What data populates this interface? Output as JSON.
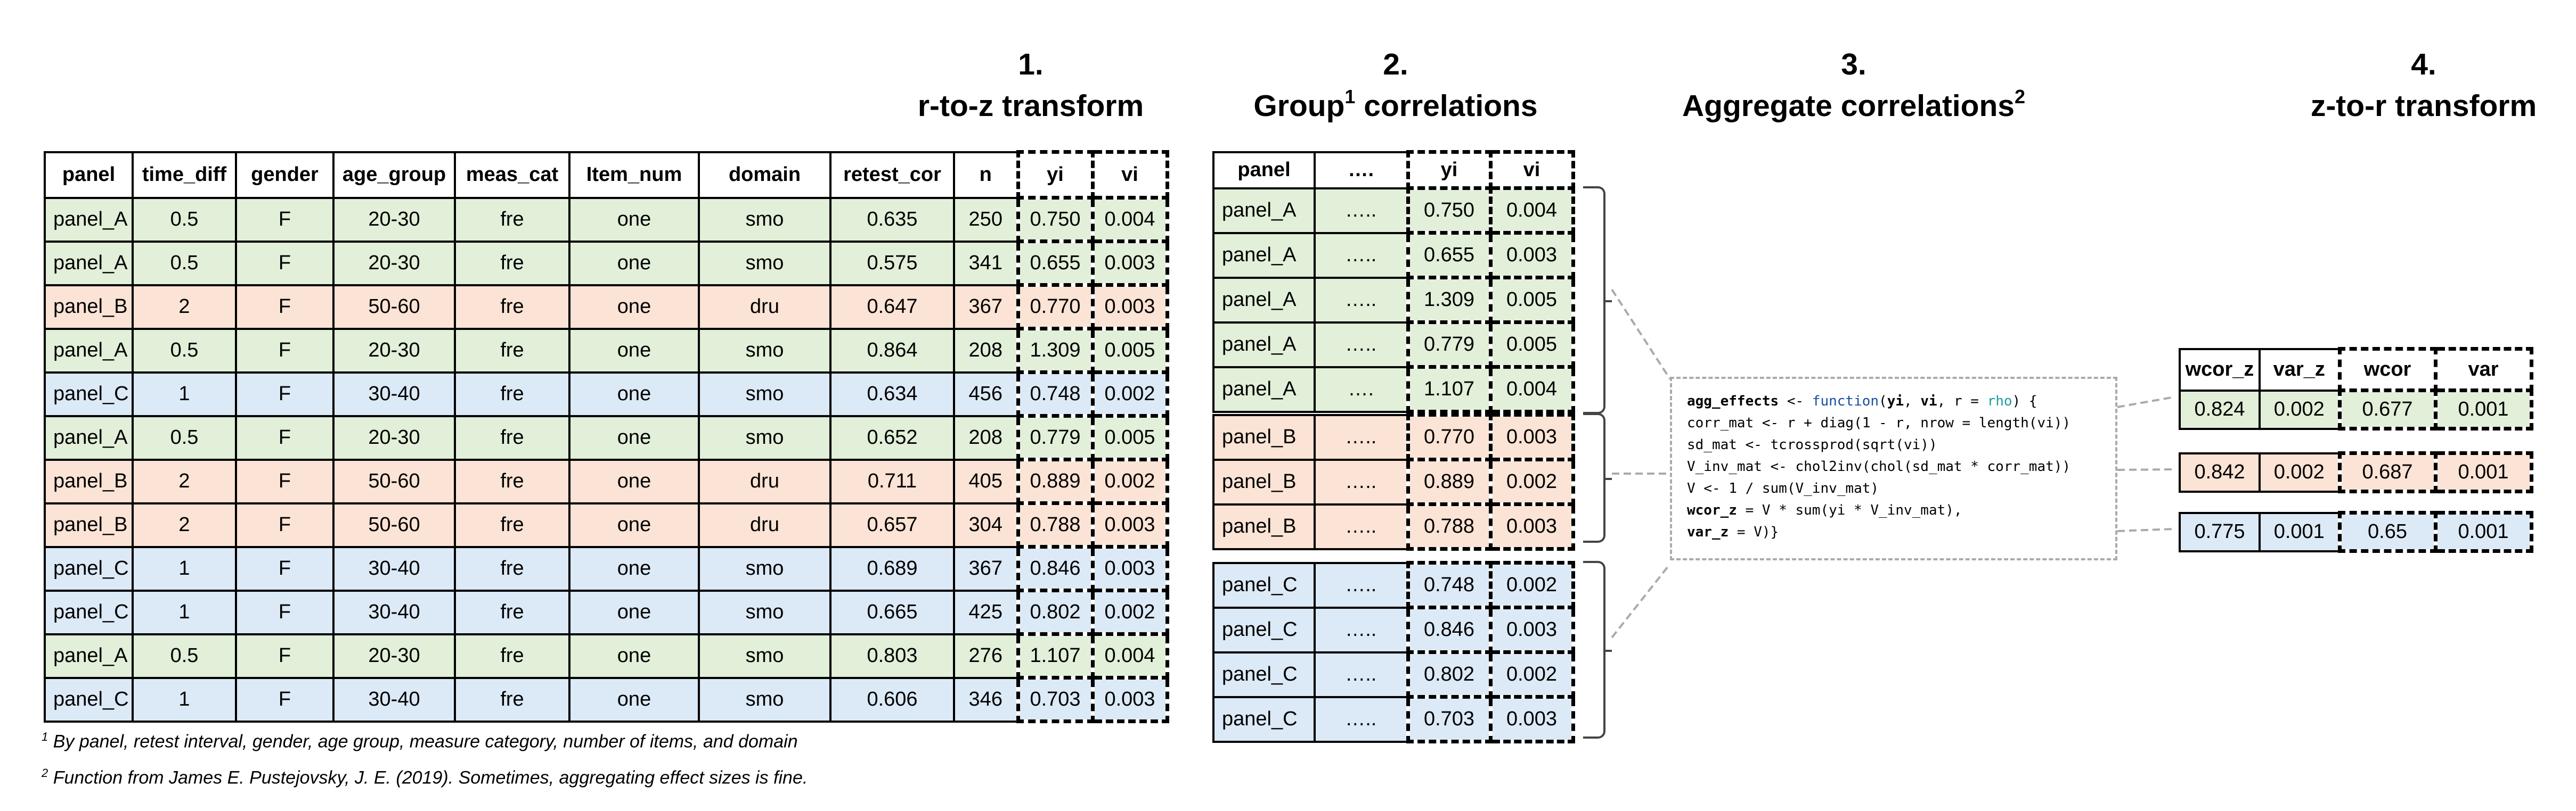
{
  "steps": [
    {
      "num": "1.",
      "title": "r-to-z transform",
      "sup": ""
    },
    {
      "num": "2.",
      "title": "Group",
      "sup": "1",
      "title_after": " correlations"
    },
    {
      "num": "3.",
      "title": "Aggregate correlations",
      "sup": "2"
    },
    {
      "num": "4.",
      "title": "z-to-r transform",
      "sup": ""
    }
  ],
  "main_table": {
    "headers": [
      "panel",
      "time_diff",
      "gender",
      "age_group",
      "meas_cat",
      "Item_num",
      "domain",
      "retest_cor",
      "n",
      "yi",
      "vi"
    ],
    "rows": [
      {
        "group": "A",
        "cells": [
          "panel_A",
          "0.5",
          "F",
          "20-30",
          "fre",
          "one",
          "smo",
          "0.635",
          "250",
          "0.750",
          "0.004"
        ]
      },
      {
        "group": "A",
        "cells": [
          "panel_A",
          "0.5",
          "F",
          "20-30",
          "fre",
          "one",
          "smo",
          "0.575",
          "341",
          "0.655",
          "0.003"
        ]
      },
      {
        "group": "B",
        "cells": [
          "panel_B",
          "2",
          "F",
          "50-60",
          "fre",
          "one",
          "dru",
          "0.647",
          "367",
          "0.770",
          "0.003"
        ]
      },
      {
        "group": "A",
        "cells": [
          "panel_A",
          "0.5",
          "F",
          "20-30",
          "fre",
          "one",
          "smo",
          "0.864",
          "208",
          "1.309",
          "0.005"
        ]
      },
      {
        "group": "C",
        "cells": [
          "panel_C",
          "1",
          "F",
          "30-40",
          "fre",
          "one",
          "smo",
          "0.634",
          "456",
          "0.748",
          "0.002"
        ]
      },
      {
        "group": "A",
        "cells": [
          "panel_A",
          "0.5",
          "F",
          "20-30",
          "fre",
          "one",
          "smo",
          "0.652",
          "208",
          "0.779",
          "0.005"
        ]
      },
      {
        "group": "B",
        "cells": [
          "panel_B",
          "2",
          "F",
          "50-60",
          "fre",
          "one",
          "dru",
          "0.711",
          "405",
          "0.889",
          "0.002"
        ]
      },
      {
        "group": "B",
        "cells": [
          "panel_B",
          "2",
          "F",
          "50-60",
          "fre",
          "one",
          "dru",
          "0.657",
          "304",
          "0.788",
          "0.003"
        ]
      },
      {
        "group": "C",
        "cells": [
          "panel_C",
          "1",
          "F",
          "30-40",
          "fre",
          "one",
          "smo",
          "0.689",
          "367",
          "0.846",
          "0.003"
        ]
      },
      {
        "group": "C",
        "cells": [
          "panel_C",
          "1",
          "F",
          "30-40",
          "fre",
          "one",
          "smo",
          "0.665",
          "425",
          "0.802",
          "0.002"
        ]
      },
      {
        "group": "A",
        "cells": [
          "panel_A",
          "0.5",
          "F",
          "20-30",
          "fre",
          "one",
          "smo",
          "0.803",
          "276",
          "1.107",
          "0.004"
        ]
      },
      {
        "group": "C",
        "cells": [
          "panel_C",
          "1",
          "F",
          "30-40",
          "fre",
          "one",
          "smo",
          "0.606",
          "346",
          "0.703",
          "0.003"
        ]
      }
    ]
  },
  "group_tables": {
    "headers": [
      "panel",
      "….",
      "yi",
      "vi"
    ],
    "groups": [
      {
        "group": "A",
        "rows": [
          [
            "panel_A",
            "…..",
            "0.750",
            "0.004"
          ],
          [
            "panel_A",
            "…..",
            "0.655",
            "0.003"
          ],
          [
            "panel_A",
            "…..",
            "1.309",
            "0.005"
          ],
          [
            "panel_A",
            "…..",
            "0.779",
            "0.005"
          ],
          [
            "panel_A",
            "….",
            "1.107",
            "0.004"
          ]
        ]
      },
      {
        "group": "B",
        "rows": [
          [
            "panel_B",
            "…..",
            "0.770",
            "0.003"
          ],
          [
            "panel_B",
            "…..",
            "0.889",
            "0.002"
          ],
          [
            "panel_B",
            "…..",
            "0.788",
            "0.003"
          ]
        ]
      },
      {
        "group": "C",
        "rows": [
          [
            "panel_C",
            "…..",
            "0.748",
            "0.002"
          ],
          [
            "panel_C",
            "…..",
            "0.846",
            "0.003"
          ],
          [
            "panel_C",
            "…..",
            "0.802",
            "0.002"
          ],
          [
            "panel_C",
            "…..",
            "0.703",
            "0.003"
          ]
        ]
      }
    ]
  },
  "code": {
    "line1_fn": "agg_effects",
    "line1_a": " <- ",
    "line1_kw": "function",
    "line1_b": "(",
    "line1_yi": "yi",
    "line1_c": ", ",
    "line1_vi": "vi",
    "line1_d": ", r = ",
    "line1_rho": "rho",
    "line1_e": ") {",
    "line2": "corr_mat <- r + diag(1 - r, nrow = length(vi))",
    "line3": "sd_mat <- tcrossprod(sqrt(vi))",
    "line4": "V_inv_mat <- chol2inv(chol(sd_mat * corr_mat))",
    "line5": "V <- 1 / sum(V_inv_mat)",
    "line6_bold": "wcor_z",
    "line6_rest": " = V * sum(yi * V_inv_mat),",
    "line7_bold": "var_z",
    "line7_rest": " = V)}"
  },
  "result_table": {
    "headers": [
      "wcor_z",
      "var_z",
      "wcor",
      "var"
    ],
    "rows": [
      {
        "group": "A",
        "cells": [
          "0.824",
          "0.002",
          "0.677",
          "0.001"
        ]
      },
      {
        "group": "B",
        "cells": [
          "0.842",
          "0.002",
          "0.687",
          "0.001"
        ]
      },
      {
        "group": "C",
        "cells": [
          "0.775",
          "0.001",
          "0.65",
          "0.001"
        ]
      }
    ]
  },
  "footnotes": [
    {
      "sup": "1",
      "text": " By panel, retest interval, gender, age group, measure category, number of items, and domain"
    },
    {
      "sup": "2",
      "text": " Function from James E. Pustejovsky, J. E. (2019). Sometimes, aggregating effect sizes is fine."
    }
  ]
}
